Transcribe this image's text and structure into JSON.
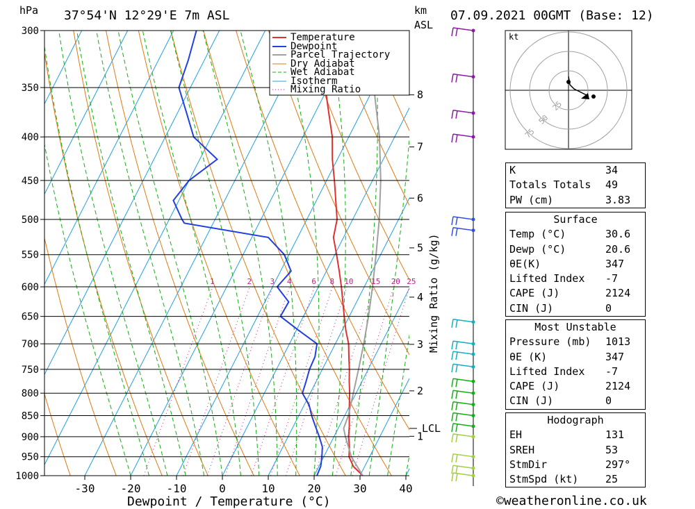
{
  "header": {
    "location": "37°54'N  12°29'E  7m  ASL",
    "date": "07.09.2021  00GMT  (Base: 12)",
    "p_unit": "hPa",
    "km_unit": "km",
    "asl_unit": "ASL"
  },
  "footer": {
    "credit": "©weatheronline.co.uk"
  },
  "chart_data": {
    "type": "line",
    "xlabel": "Dewpoint / Temperature (°C)",
    "ylabel": "hPa",
    "right_axis_label": "Mixing Ratio (g/kg)",
    "xlim": [
      -40,
      40
    ],
    "ylim": [
      1000,
      300
    ],
    "x_ticks": [
      "-30",
      "-20",
      "-10",
      "0",
      "10",
      "20",
      "30",
      "40"
    ],
    "x_tick_values": [
      -30,
      -20,
      -10,
      0,
      10,
      20,
      30,
      40
    ],
    "pressure_levels": [
      "300",
      "350",
      "400",
      "450",
      "500",
      "550",
      "600",
      "650",
      "700",
      "750",
      "800",
      "850",
      "900",
      "950",
      "1000"
    ],
    "pressure_values": [
      300,
      350,
      400,
      450,
      500,
      550,
      600,
      650,
      700,
      750,
      800,
      850,
      900,
      950,
      1000
    ],
    "km_ticks": [
      "1",
      "2",
      "3",
      "4",
      "5",
      "6",
      "7",
      "8"
    ],
    "km_pressures": [
      899,
      795,
      701,
      617,
      540,
      472,
      411,
      357
    ],
    "lcl_label": "LCL",
    "lcl_pressure": 880,
    "mixing_ratio_labels": [
      "1",
      "2",
      "3",
      "4",
      "6",
      "8",
      "10",
      "15",
      "20",
      "25"
    ],
    "mixing_ratio_values": [
      1,
      2,
      3,
      4,
      6,
      8,
      10,
      15,
      20,
      25
    ],
    "legend": [
      "Temperature",
      "Dewpoint",
      "Parcel Trajectory",
      "Dry Adiabat",
      "Wet Adiabat",
      "Isotherm",
      "Mixing Ratio"
    ],
    "colors": {
      "temperature": "#e03030",
      "dewpoint": "#2040e0",
      "parcel": "#a0a0a0",
      "dry_adiabat": "#e07a10",
      "wet_adiabat": "#10b010",
      "isotherm": "#20a0e0",
      "mixing_ratio": "#c02090"
    },
    "series": [
      {
        "name": "Temperature",
        "points": [
          [
            1000,
            30.6
          ],
          [
            975,
            27.5
          ],
          [
            950,
            25.5
          ],
          [
            925,
            24.5
          ],
          [
            900,
            23.2
          ],
          [
            875,
            22.2
          ],
          [
            850,
            21.0
          ],
          [
            825,
            19.8
          ],
          [
            800,
            18.6
          ],
          [
            775,
            17.2
          ],
          [
            750,
            15.9
          ],
          [
            725,
            14.4
          ],
          [
            700,
            12.9
          ],
          [
            675,
            10.8
          ],
          [
            650,
            8.9
          ],
          [
            625,
            7.0
          ],
          [
            600,
            5.0
          ],
          [
            575,
            2.8
          ],
          [
            550,
            0.4
          ],
          [
            525,
            -2.2
          ],
          [
            500,
            -3.4
          ],
          [
            475,
            -5.8
          ],
          [
            450,
            -8.3
          ],
          [
            425,
            -11.1
          ],
          [
            400,
            -13.6
          ],
          [
            375,
            -17.0
          ],
          [
            350,
            -20.6
          ],
          [
            325,
            -25.3
          ],
          [
            300,
            -30.2
          ]
        ]
      },
      {
        "name": "Dewpoint",
        "points": [
          [
            1000,
            20.6
          ],
          [
            975,
            20.4
          ],
          [
            950,
            19.6
          ],
          [
            925,
            18.6
          ],
          [
            900,
            16.8
          ],
          [
            875,
            14.8
          ],
          [
            850,
            12.8
          ],
          [
            825,
            11.0
          ],
          [
            800,
            8.3
          ],
          [
            775,
            7.8
          ],
          [
            750,
            7.2
          ],
          [
            725,
            7.0
          ],
          [
            700,
            6.0
          ],
          [
            675,
            0.5
          ],
          [
            650,
            -5.0
          ],
          [
            625,
            -4.8
          ],
          [
            600,
            -9.0
          ],
          [
            575,
            -7.7
          ],
          [
            550,
            -11.0
          ],
          [
            525,
            -16.4
          ],
          [
            505,
            -36.3
          ],
          [
            500,
            -37.2
          ],
          [
            475,
            -41.2
          ],
          [
            450,
            -40.0
          ],
          [
            425,
            -36.2
          ],
          [
            400,
            -43.8
          ],
          [
            375,
            -48.0
          ],
          [
            350,
            -52.5
          ],
          [
            325,
            -53.5
          ],
          [
            300,
            -55.0
          ]
        ]
      },
      {
        "name": "Parcel Trajectory",
        "points": [
          [
            1000,
            30.6
          ],
          [
            950,
            26.0
          ],
          [
            900,
            22.5
          ],
          [
            880,
            21.2
          ],
          [
            850,
            20.8
          ],
          [
            800,
            19.4
          ],
          [
            750,
            17.9
          ],
          [
            700,
            16.2
          ],
          [
            650,
            14.2
          ],
          [
            600,
            11.8
          ],
          [
            550,
            9.0
          ],
          [
            500,
            5.8
          ],
          [
            450,
            1.8
          ],
          [
            400,
            -3.3
          ],
          [
            350,
            -10.0
          ],
          [
            300,
            -19.0
          ]
        ]
      }
    ],
    "hodograph": {
      "unit_label": "kt",
      "rings": [
        "25",
        "50",
        "75"
      ],
      "ring_values": [
        25,
        50,
        75
      ]
    },
    "wind_barbs_pressures": [
      300,
      340,
      375,
      400,
      500,
      515,
      660,
      700,
      720,
      745,
      775,
      800,
      825,
      850,
      875,
      900,
      950,
      980,
      1000
    ]
  },
  "indices": {
    "k_label": "K",
    "k_value": "34",
    "tt_label": "Totals Totals",
    "tt_value": "49",
    "pw_label": "PW (cm)",
    "pw_value": "3.83"
  },
  "surface": {
    "title": "Surface",
    "temp_label": "Temp (°C)",
    "temp_value": "30.6",
    "dewp_label": "Dewp (°C)",
    "dewp_value": "20.6",
    "theta_label": "θE(K)",
    "theta_value": "347",
    "li_label": "Lifted Index",
    "li_value": "-7",
    "cape_label": "CAPE (J)",
    "cape_value": "2124",
    "cin_label": "CIN (J)",
    "cin_value": "0"
  },
  "most_unstable": {
    "title": "Most Unstable",
    "pressure_label": "Pressure (mb)",
    "pressure_value": "1013",
    "theta_label": "θE (K)",
    "theta_value": "347",
    "li_label": "Lifted Index",
    "li_value": "-7",
    "cape_label": "CAPE (J)",
    "cape_value": "2124",
    "cin_label": "CIN (J)",
    "cin_value": "0"
  },
  "hodograph_table": {
    "title": "Hodograph",
    "eh_label": "EH",
    "eh_value": "131",
    "sreh_label": "SREH",
    "sreh_value": "53",
    "stmdir_label": "StmDir",
    "stmdir_value": "297°",
    "stmspd_label": "StmSpd (kt)",
    "stmspd_value": "25"
  }
}
